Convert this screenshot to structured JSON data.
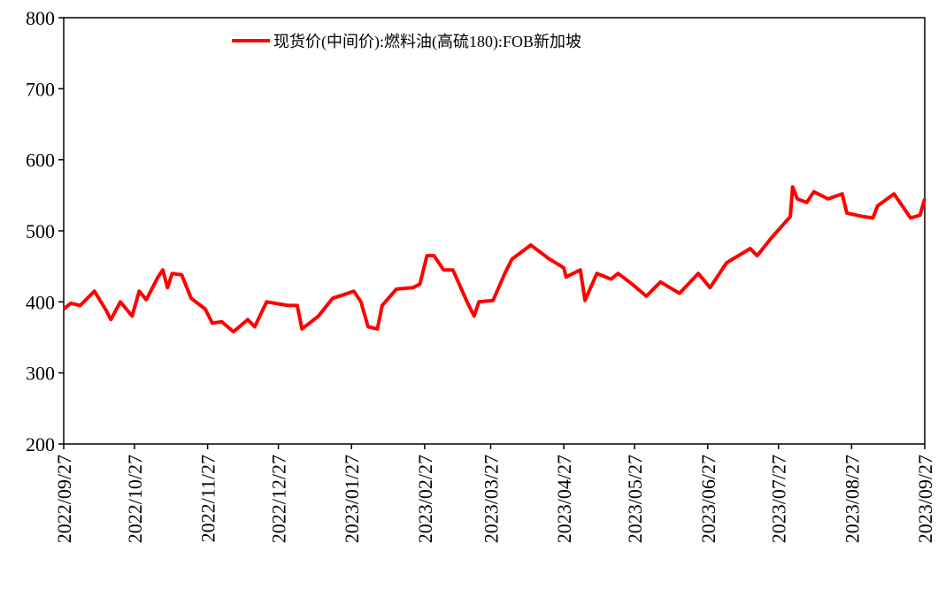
{
  "chart_data": {
    "type": "line",
    "x": [
      "2022/09/27",
      "2022/09/30",
      "2022/10/04",
      "2022/10/07",
      "2022/10/10",
      "2022/10/15",
      "2022/10/17",
      "2022/10/21",
      "2022/10/26",
      "2022/10/29",
      "2022/11/01",
      "2022/11/06",
      "2022/11/08",
      "2022/11/10",
      "2022/11/12",
      "2022/11/16",
      "2022/11/20",
      "2022/11/26",
      "2022/11/29",
      "2022/12/03",
      "2022/12/08",
      "2022/12/14",
      "2022/12/17",
      "2022/12/22",
      "2022/12/31",
      "2023/01/04",
      "2023/01/06",
      "2023/01/13",
      "2023/01/19",
      "2023/01/28",
      "2023/01/31",
      "2023/02/03",
      "2023/02/07",
      "2023/02/09",
      "2023/02/15",
      "2023/02/22",
      "2023/02/25",
      "2023/02/28",
      "2023/03/03",
      "2023/03/07",
      "2023/03/11",
      "2023/03/17",
      "2023/03/20",
      "2023/03/22",
      "2023/03/28",
      "2023/04/02",
      "2023/04/05",
      "2023/04/13",
      "2023/04/21",
      "2023/04/27",
      "2023/04/28",
      "2023/05/04",
      "2023/05/06",
      "2023/05/11",
      "2023/05/17",
      "2023/05/20",
      "2023/05/26",
      "2023/06/01",
      "2023/06/07",
      "2023/06/15",
      "2023/06/23",
      "2023/06/28",
      "2023/07/05",
      "2023/07/15",
      "2023/07/18",
      "2023/07/24",
      "2023/08/01",
      "2023/08/02",
      "2023/08/04",
      "2023/08/08",
      "2023/08/11",
      "2023/08/17",
      "2023/08/23",
      "2023/08/25",
      "2023/09/01",
      "2023/09/05",
      "2023/09/07",
      "2023/09/14",
      "2023/09/21",
      "2023/09/25",
      "2023/09/27"
    ],
    "series": [
      {
        "name": "现货价(中间价):燃料油(高硫180):FOB新加坡",
        "color": "#ff0000",
        "values": [
          390,
          398,
          395,
          405,
          415,
          388,
          375,
          400,
          380,
          415,
          403,
          435,
          445,
          420,
          440,
          438,
          405,
          390,
          370,
          372,
          358,
          375,
          365,
          400,
          395,
          395,
          362,
          380,
          405,
          415,
          400,
          365,
          362,
          395,
          418,
          420,
          425,
          465,
          465,
          445,
          445,
          400,
          380,
          400,
          402,
          440,
          460,
          480,
          460,
          448,
          435,
          445,
          402,
          440,
          432,
          440,
          425,
          408,
          428,
          412,
          440,
          420,
          455,
          475,
          465,
          490,
          520,
          562,
          545,
          540,
          555,
          545,
          552,
          525,
          520,
          518,
          535,
          552,
          518,
          522,
          545
        ]
      }
    ],
    "ylim": [
      200,
      800
    ],
    "yticks": [
      200,
      300,
      400,
      500,
      600,
      700,
      800
    ],
    "xlim": [
      "2022/09/27",
      "2023/09/27"
    ],
    "xticks": [
      "2022/09/27",
      "2022/10/27",
      "2022/11/27",
      "2022/12/27",
      "2023/01/27",
      "2023/02/27",
      "2023/03/27",
      "2023/04/27",
      "2023/05/27",
      "2023/06/27",
      "2023/07/27",
      "2023/08/27",
      "2023/09/27"
    ],
    "legend": "top"
  }
}
